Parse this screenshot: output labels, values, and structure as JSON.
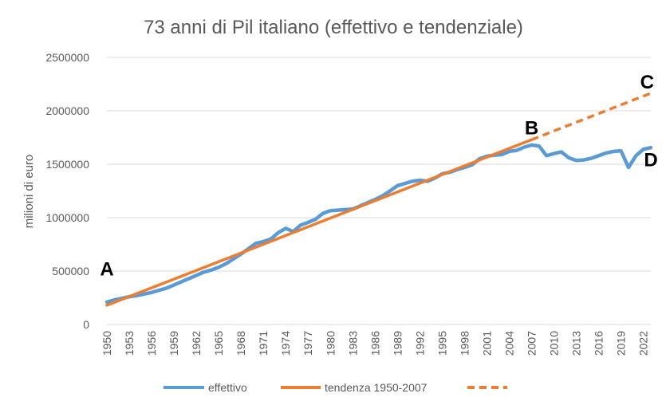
{
  "chart_data": {
    "type": "line",
    "title": "73 anni di Pil italiano (effettivo e tendenziale)",
    "xlabel": "",
    "ylabel": "milioni di euro",
    "ylim": [
      0,
      2500000
    ],
    "y_ticks": [
      0,
      500000,
      1000000,
      1500000,
      2000000,
      2500000
    ],
    "y_tick_labels": [
      "0",
      "500000",
      "1000000",
      "1500000",
      "2000000",
      "2500000"
    ],
    "x_range": [
      1950,
      2023
    ],
    "x_tick_labels": [
      "1950",
      "1953",
      "1956",
      "1959",
      "1962",
      "1965",
      "1968",
      "1971",
      "1974",
      "1977",
      "1980",
      "1983",
      "1986",
      "1989",
      "1992",
      "1995",
      "1998",
      "2001",
      "2004",
      "2007",
      "2010",
      "2013",
      "2016",
      "2019",
      "2022"
    ],
    "grid": "horizontal",
    "legend_position": "bottom",
    "colors": {
      "effettivo": "#5b9bd5",
      "tendenza": "#ed7d31",
      "grid": "#d9d9d9",
      "text": "#595959"
    },
    "series": [
      {
        "name": "effettivo",
        "style": "solid",
        "color": "#5b9bd5",
        "x": [
          1950,
          1951,
          1952,
          1953,
          1954,
          1955,
          1956,
          1957,
          1958,
          1959,
          1960,
          1961,
          1962,
          1963,
          1964,
          1965,
          1966,
          1967,
          1968,
          1969,
          1970,
          1971,
          1972,
          1973,
          1974,
          1975,
          1976,
          1977,
          1978,
          1979,
          1980,
          1981,
          1982,
          1983,
          1984,
          1985,
          1986,
          1987,
          1988,
          1989,
          1990,
          1991,
          1992,
          1993,
          1994,
          1995,
          1996,
          1997,
          1998,
          1999,
          2000,
          2001,
          2002,
          2003,
          2004,
          2005,
          2006,
          2007,
          2008,
          2009,
          2010,
          2011,
          2012,
          2013,
          2014,
          2015,
          2016,
          2017,
          2018,
          2019,
          2020,
          2021,
          2022,
          2023
        ],
        "values": [
          210000,
          230000,
          245000,
          260000,
          270000,
          285000,
          300000,
          320000,
          340000,
          370000,
          400000,
          430000,
          460000,
          490000,
          510000,
          535000,
          570000,
          615000,
          660000,
          710000,
          760000,
          775000,
          800000,
          860000,
          900000,
          870000,
          930000,
          955000,
          985000,
          1040000,
          1065000,
          1070000,
          1075000,
          1080000,
          1110000,
          1140000,
          1170000,
          1205000,
          1250000,
          1300000,
          1320000,
          1340000,
          1350000,
          1340000,
          1370000,
          1410000,
          1425000,
          1450000,
          1470000,
          1495000,
          1550000,
          1575000,
          1585000,
          1590000,
          1620000,
          1630000,
          1660000,
          1680000,
          1670000,
          1580000,
          1600000,
          1615000,
          1560000,
          1535000,
          1540000,
          1555000,
          1580000,
          1605000,
          1620000,
          1625000,
          1470000,
          1580000,
          1640000,
          1655000
        ]
      },
      {
        "name": "tendenza 1950-2007",
        "style": "solid",
        "color": "#ed7d31",
        "x": [
          1950,
          2007
        ],
        "values": [
          180000,
          1730000
        ]
      },
      {
        "name": "",
        "style": "dashed",
        "color": "#ed7d31",
        "x": [
          2007,
          2023
        ],
        "values": [
          1730000,
          2165000
        ]
      }
    ],
    "annotations": [
      {
        "text": "A",
        "x": 1950,
        "y": 460000
      },
      {
        "text": "B",
        "x": 2007,
        "y": 1780000
      },
      {
        "text": "C",
        "x": 2022.5,
        "y": 2210000
      },
      {
        "text": "D",
        "x": 2023,
        "y": 1480000
      }
    ]
  }
}
